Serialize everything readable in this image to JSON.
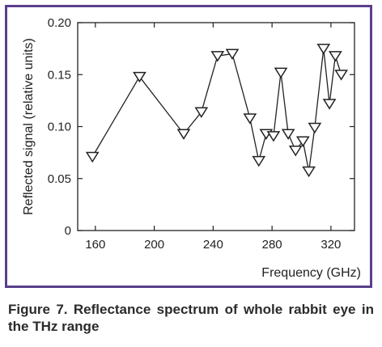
{
  "figure": {
    "caption": "Figure 7. Reflectance spectrum of whole rabbit eye in the THz range",
    "frame_color": "#5b3f8c"
  },
  "chart_data": {
    "type": "line",
    "marker": "triangle-down",
    "xlabel": "Frequency (GHz)",
    "ylabel": "Reflected signal (relative units)",
    "xlim": [
      148,
      336
    ],
    "ylim": [
      0,
      0.2
    ],
    "xticks": [
      160,
      200,
      240,
      280,
      320
    ],
    "xtick_labels": [
      "160",
      "200",
      "240",
      "280",
      "320"
    ],
    "yticks": [
      0,
      0.05,
      0.1,
      0.15,
      0.2
    ],
    "ytick_labels": [
      "0",
      "0.05",
      "0.10",
      "0.15",
      "0.20"
    ],
    "grid": false,
    "legend": "none",
    "series": [
      {
        "x": [
          158,
          190,
          220,
          232,
          243,
          253,
          265,
          271,
          276,
          281,
          286,
          291,
          296,
          301,
          305,
          309,
          315,
          319,
          323,
          327
        ],
        "y": [
          0.071,
          0.148,
          0.093,
          0.114,
          0.168,
          0.17,
          0.108,
          0.067,
          0.093,
          0.091,
          0.152,
          0.093,
          0.077,
          0.086,
          0.057,
          0.099,
          0.175,
          0.122,
          0.168,
          0.15
        ]
      }
    ]
  }
}
